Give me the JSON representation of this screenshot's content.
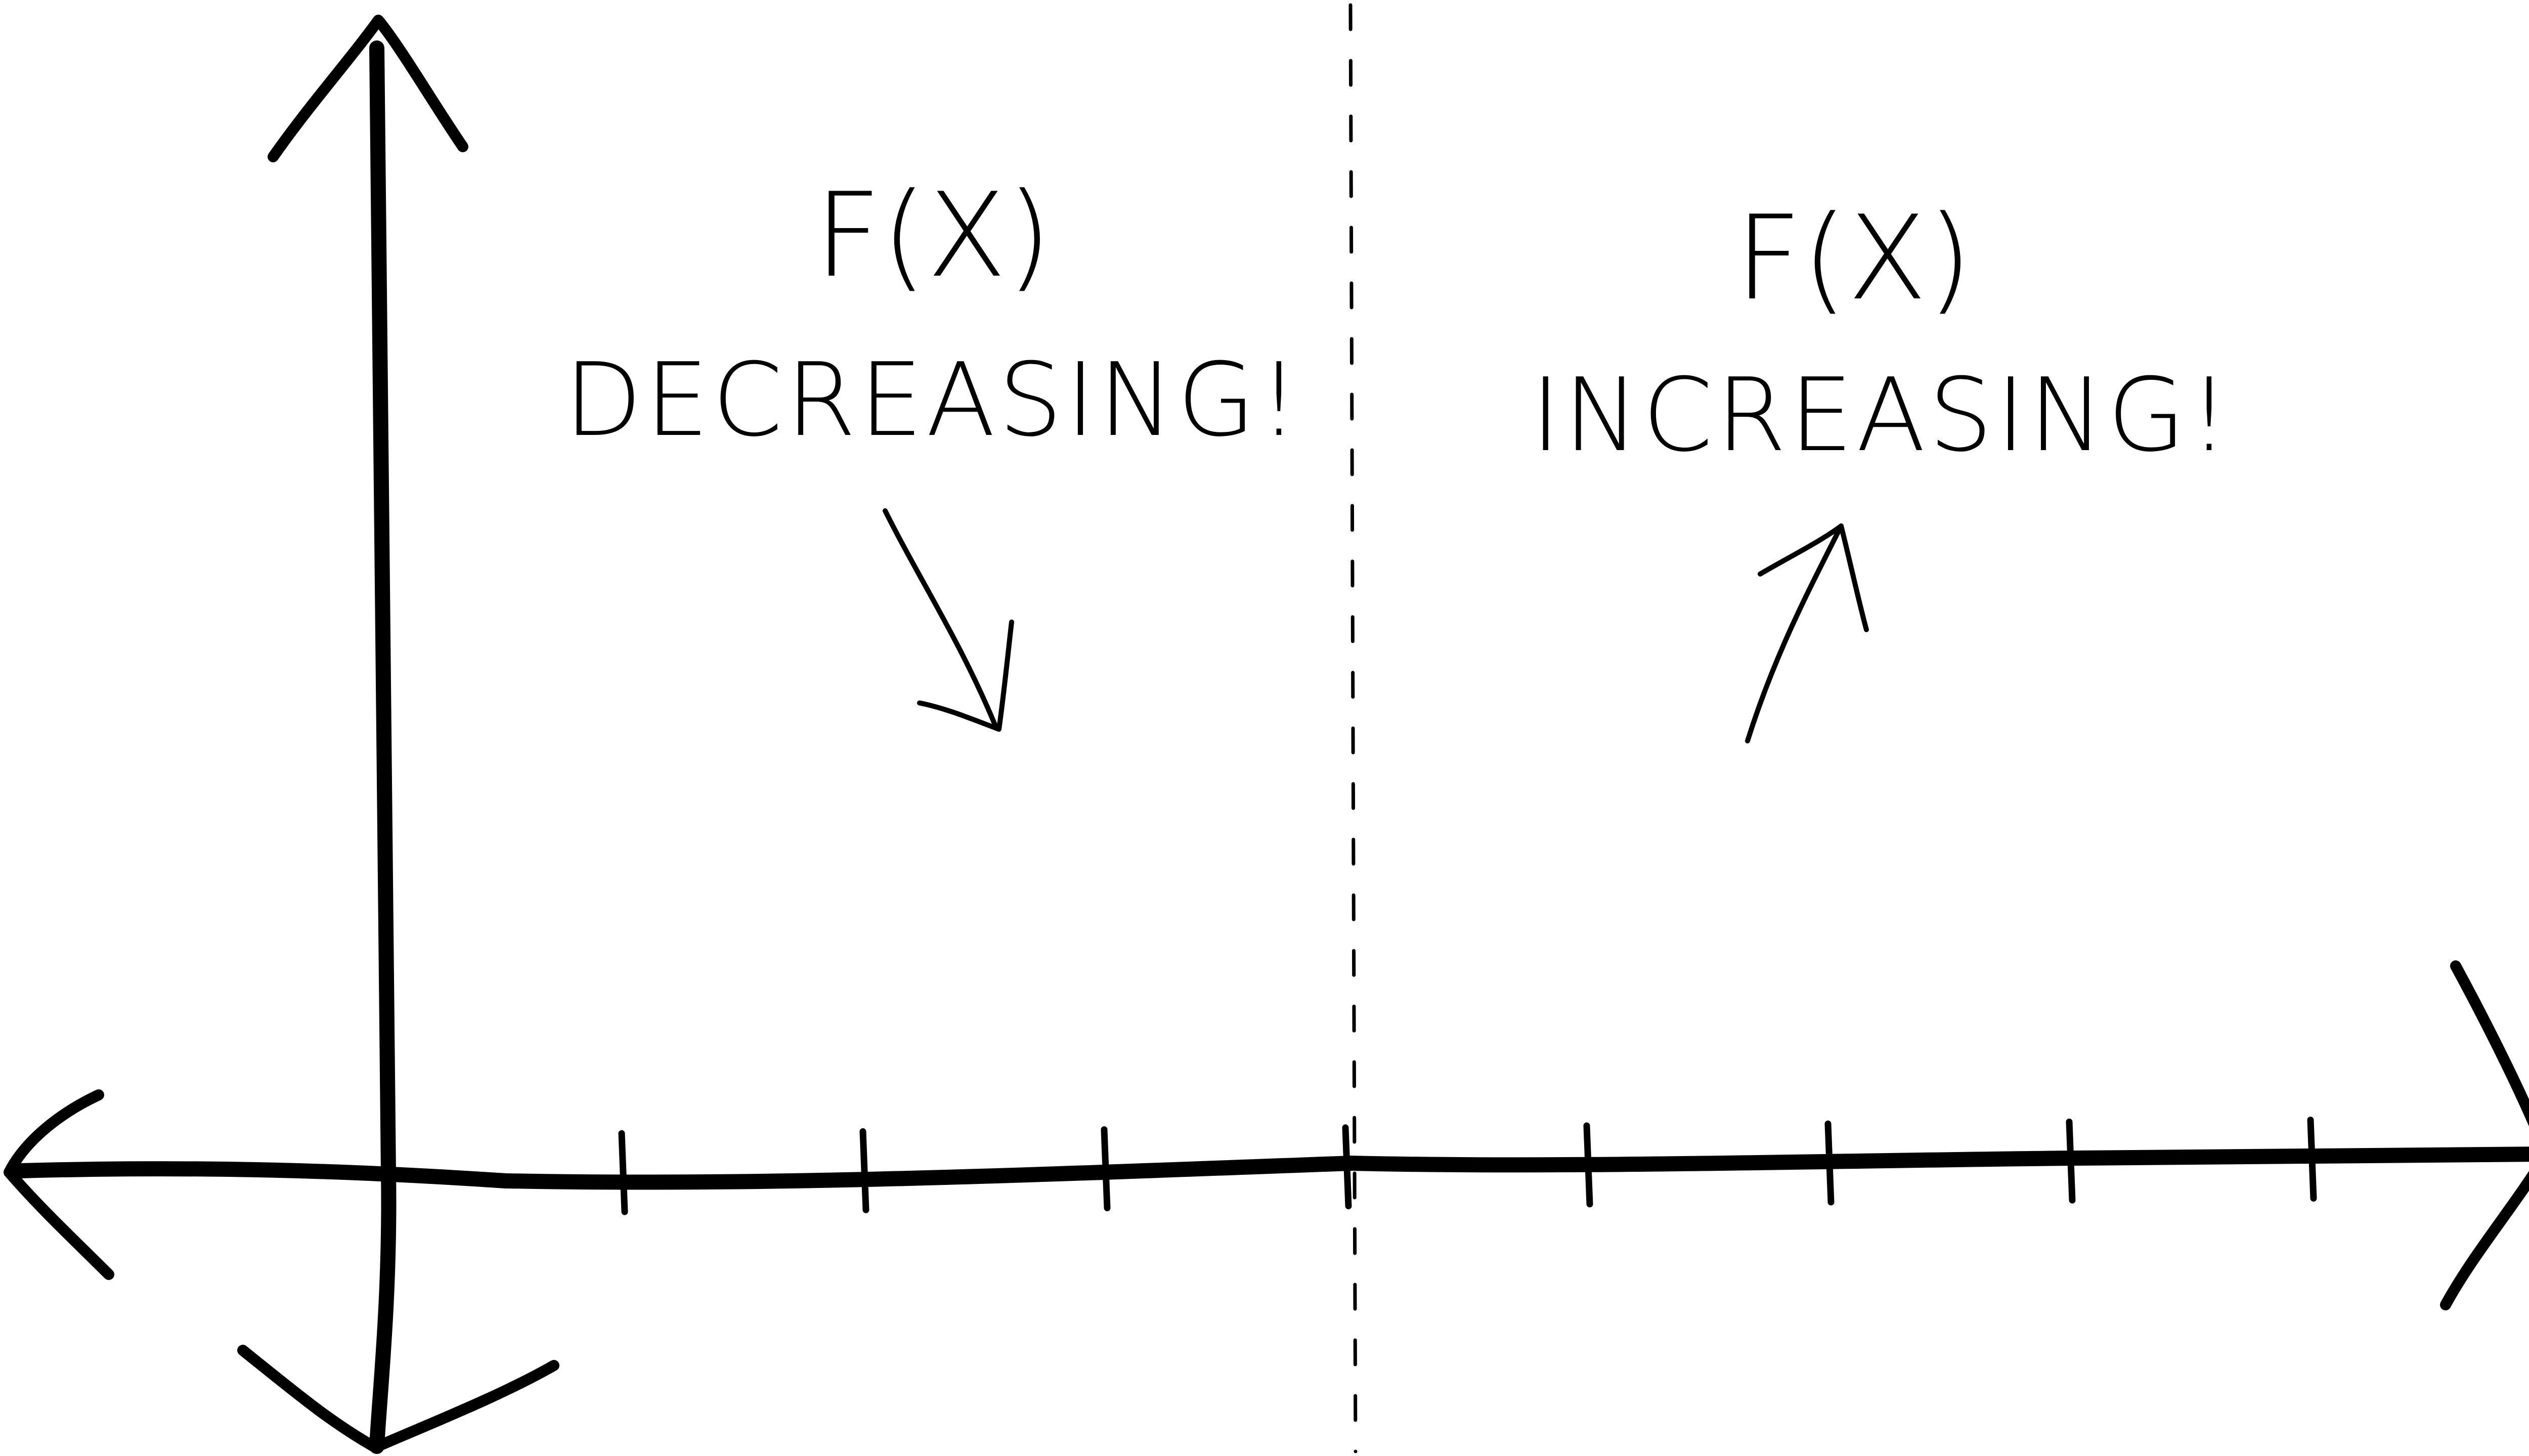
{
  "diagram": {
    "left_label": {
      "line1": "F(X)",
      "line2": "DECREASING!"
    },
    "right_label": {
      "line1": "F(X)",
      "line2": "INCREASING!"
    },
    "x_axis": {
      "ticks_left_of_origin": 0,
      "ticks_right_of_origin": 8,
      "divider_at_tick": 4
    },
    "ink_color": "#000000",
    "background_color": "#ffffff"
  }
}
